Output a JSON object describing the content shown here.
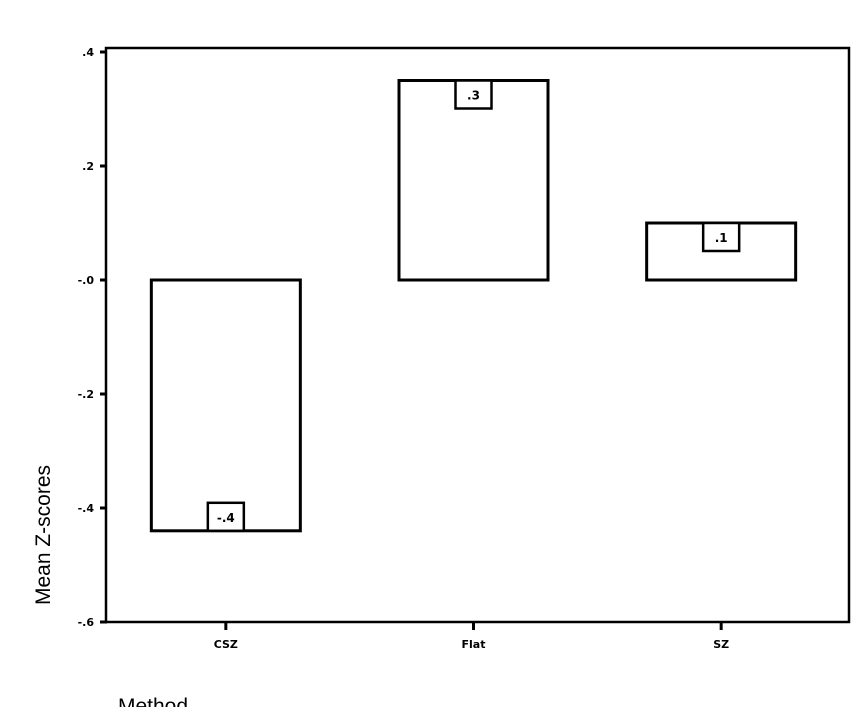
{
  "chart_data": {
    "type": "bar",
    "title": "",
    "xlabel": "Method",
    "ylabel": "Mean Z-scores",
    "categories": [
      "CSZ",
      "Flat",
      "SZ"
    ],
    "values": [
      -0.44,
      0.35,
      0.1
    ],
    "data_labels": [
      "-.4",
      ".3",
      ".1"
    ],
    "ylim": [
      -0.6,
      0.4
    ],
    "yticks": [
      0.4,
      0.2,
      0.0,
      -0.2,
      -0.4,
      -0.6
    ],
    "ytick_labels": [
      ".4",
      ".2",
      "-.0",
      "-.2",
      "-.4",
      "-.6"
    ],
    "grid": false,
    "legend": "none",
    "bar_fill": "#ffffff",
    "line_color": "#000000"
  }
}
